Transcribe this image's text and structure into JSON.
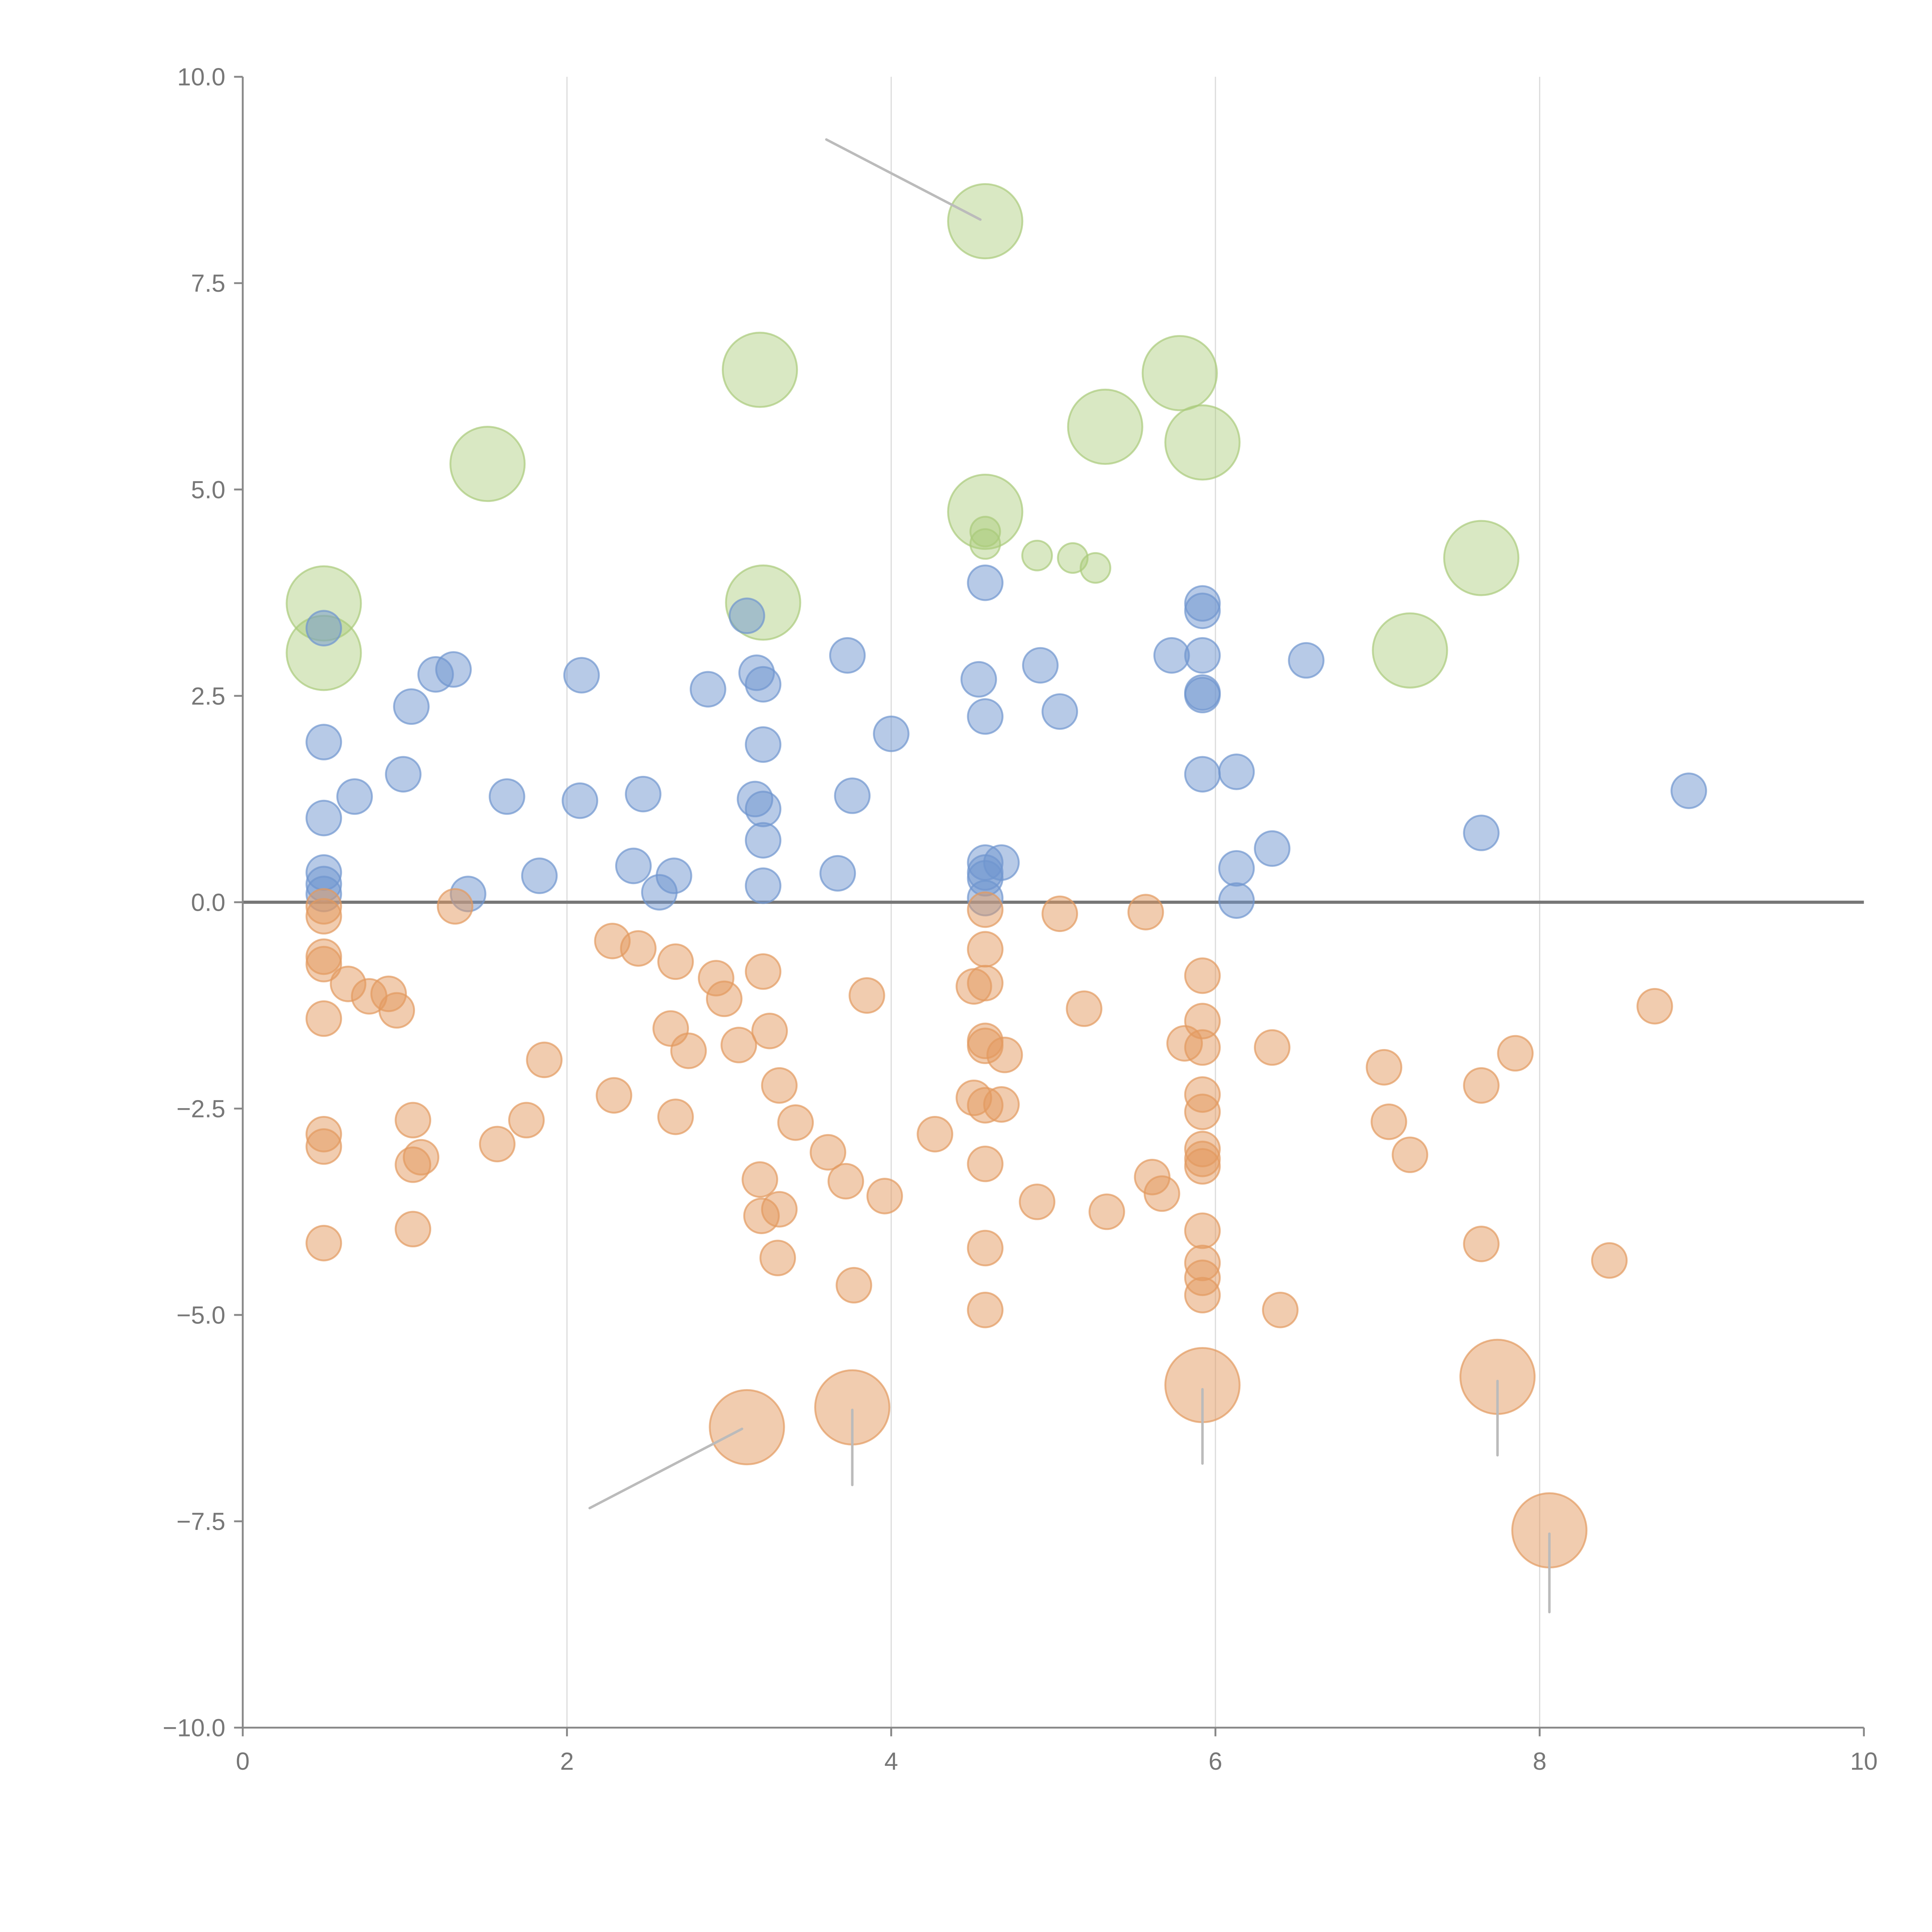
{
  "chart_data": {
    "type": "scatter",
    "title": "",
    "xlabel": "",
    "ylabel": "",
    "xlim": [
      0,
      10
    ],
    "ylim": [
      -10,
      10
    ],
    "grid": "vertical",
    "x_ticks": [
      "0",
      "2",
      "4",
      "6",
      "8",
      "10"
    ],
    "x_tick_values": [
      0,
      2,
      4,
      6,
      8,
      10
    ],
    "y_ticks": [
      "10.0",
      "7.5",
      "5.0",
      "2.5",
      "0.0",
      "−2.5",
      "−5.0",
      "−7.5",
      "−10.0"
    ],
    "y_tick_values": [
      10,
      7.5,
      5,
      2.5,
      0,
      -2.5,
      -5,
      -7.5,
      -10
    ],
    "colors": {
      "blue": "#6f95cf",
      "orange": "#e39a5f",
      "green": "#aacb7a",
      "leader": "#bbbbbb",
      "axis": "#888888",
      "zero_line": "#777777",
      "grid": "#dddddd"
    },
    "series": [
      {
        "name": "blue",
        "size": 1,
        "points": [
          [
            0.5,
            3.32
          ],
          [
            0.5,
            1.94
          ],
          [
            0.5,
            1.02
          ],
          [
            0.5,
            0.36
          ],
          [
            0.5,
            0.22
          ],
          [
            0.5,
            0.1
          ],
          [
            0.69,
            1.28
          ],
          [
            0.99,
            1.55
          ],
          [
            1.04,
            2.37
          ],
          [
            1.19,
            2.76
          ],
          [
            1.3,
            2.82
          ],
          [
            1.39,
            0.1
          ],
          [
            1.63,
            1.28
          ],
          [
            1.83,
            0.32
          ],
          [
            2.08,
            1.23
          ],
          [
            2.09,
            2.75
          ],
          [
            2.41,
            0.44
          ],
          [
            2.47,
            1.31
          ],
          [
            2.57,
            0.12
          ],
          [
            2.66,
            0.32
          ],
          [
            2.87,
            2.58
          ],
          [
            3.11,
            3.47
          ],
          [
            3.17,
            2.78
          ],
          [
            3.21,
            2.64
          ],
          [
            3.21,
            1.91
          ],
          [
            3.16,
            1.25
          ],
          [
            3.21,
            1.13
          ],
          [
            3.21,
            0.75
          ],
          [
            3.21,
            0.2
          ],
          [
            3.67,
            0.35
          ],
          [
            3.73,
            2.99
          ],
          [
            3.76,
            1.29
          ],
          [
            4.0,
            2.04
          ],
          [
            4.54,
            2.7
          ],
          [
            4.58,
            3.87
          ],
          [
            4.58,
            2.25
          ],
          [
            4.58,
            0.48
          ],
          [
            4.58,
            0.36
          ],
          [
            4.58,
            0.29
          ],
          [
            4.58,
            0.05
          ],
          [
            4.68,
            0.48
          ],
          [
            4.92,
            2.87
          ],
          [
            5.04,
            2.31
          ],
          [
            5.73,
            2.99
          ],
          [
            5.92,
            3.62
          ],
          [
            5.92,
            3.53
          ],
          [
            5.92,
            2.99
          ],
          [
            5.92,
            2.54
          ],
          [
            5.92,
            2.51
          ],
          [
            5.92,
            1.55
          ],
          [
            6.13,
            1.58
          ],
          [
            6.13,
            0.41
          ],
          [
            6.13,
            0.02
          ],
          [
            6.35,
            0.65
          ],
          [
            6.56,
            2.93
          ],
          [
            7.64,
            0.84
          ],
          [
            8.92,
            1.35
          ]
        ]
      },
      {
        "name": "green",
        "points": [
          [
            0.5,
            3.62,
            3
          ],
          [
            0.5,
            3.02,
            3
          ],
          [
            1.51,
            5.31,
            3
          ],
          [
            3.19,
            6.45,
            3
          ],
          [
            3.21,
            3.63,
            3
          ],
          [
            4.58,
            8.25,
            3
          ],
          [
            4.58,
            4.73,
            3
          ],
          [
            5.32,
            5.76,
            3
          ],
          [
            5.78,
            6.41,
            3
          ],
          [
            5.92,
            5.57,
            3
          ],
          [
            7.2,
            3.05,
            3
          ],
          [
            7.64,
            4.17,
            3
          ],
          [
            4.58,
            4.49,
            1
          ],
          [
            4.58,
            4.34,
            1
          ],
          [
            4.9,
            4.2,
            1
          ],
          [
            5.12,
            4.17,
            1
          ],
          [
            5.26,
            4.05,
            1
          ]
        ]
      },
      {
        "name": "orange",
        "points": [
          [
            0.5,
            -0.05,
            1
          ],
          [
            0.5,
            -0.17,
            1
          ],
          [
            0.5,
            -0.66,
            1
          ],
          [
            0.5,
            -0.75,
            1
          ],
          [
            0.5,
            -1.41,
            1
          ],
          [
            0.5,
            -2.81,
            1
          ],
          [
            0.5,
            -2.96,
            1
          ],
          [
            0.5,
            -4.13,
            1
          ],
          [
            0.65,
            -0.99,
            1
          ],
          [
            0.78,
            -1.14,
            1
          ],
          [
            0.9,
            -1.11,
            1
          ],
          [
            0.95,
            -1.31,
            1
          ],
          [
            1.05,
            -2.64,
            1
          ],
          [
            1.05,
            -3.18,
            1
          ],
          [
            1.1,
            -3.09,
            1
          ],
          [
            1.05,
            -3.96,
            1
          ],
          [
            1.31,
            -0.05,
            1
          ],
          [
            1.57,
            -2.93,
            1
          ],
          [
            1.75,
            -2.64,
            1
          ],
          [
            1.86,
            -1.91,
            1
          ],
          [
            2.28,
            -0.47,
            1
          ],
          [
            2.29,
            -2.34,
            1
          ],
          [
            2.44,
            -0.56,
            1
          ],
          [
            2.67,
            -0.72,
            1
          ],
          [
            2.64,
            -1.53,
            1
          ],
          [
            2.75,
            -1.8,
            1
          ],
          [
            2.67,
            -2.6,
            1
          ],
          [
            2.92,
            -0.92,
            1
          ],
          [
            2.97,
            -1.17,
            1
          ],
          [
            3.06,
            -1.73,
            1
          ],
          [
            3.19,
            -3.36,
            1
          ],
          [
            3.2,
            -3.8,
            1
          ],
          [
            3.31,
            -3.72,
            1
          ],
          [
            3.21,
            -0.84,
            1
          ],
          [
            3.25,
            -1.56,
            1
          ],
          [
            3.31,
            -2.22,
            1
          ],
          [
            3.3,
            -4.31,
            1
          ],
          [
            3.41,
            -2.67,
            1
          ],
          [
            3.61,
            -3.03,
            1
          ],
          [
            3.72,
            -3.38,
            1
          ],
          [
            3.77,
            -4.64,
            1
          ],
          [
            3.85,
            -1.13,
            1
          ],
          [
            3.96,
            -3.56,
            1
          ],
          [
            4.27,
            -2.81,
            1
          ],
          [
            4.51,
            -1.02,
            1
          ],
          [
            4.58,
            -0.09,
            1
          ],
          [
            4.58,
            -0.57,
            1
          ],
          [
            4.58,
            -0.98,
            1
          ],
          [
            4.58,
            -1.68,
            1
          ],
          [
            4.58,
            -1.74,
            1
          ],
          [
            4.51,
            -2.37,
            1
          ],
          [
            4.58,
            -2.46,
            1
          ],
          [
            4.68,
            -2.45,
            1
          ],
          [
            4.7,
            -1.85,
            1
          ],
          [
            4.58,
            -3.17,
            1
          ],
          [
            4.58,
            -4.19,
            1
          ],
          [
            4.58,
            -4.94,
            1
          ],
          [
            4.9,
            -3.63,
            1
          ],
          [
            5.04,
            -0.14,
            1
          ],
          [
            5.19,
            -1.29,
            1
          ],
          [
            5.33,
            -3.75,
            1
          ],
          [
            5.57,
            -0.12,
            1
          ],
          [
            5.61,
            -3.33,
            1
          ],
          [
            5.67,
            -3.53,
            1
          ],
          [
            5.81,
            -1.71,
            1
          ],
          [
            5.92,
            -0.89,
            1
          ],
          [
            5.92,
            -1.44,
            1
          ],
          [
            5.92,
            -1.76,
            1
          ],
          [
            5.92,
            -2.33,
            1
          ],
          [
            5.92,
            -2.54,
            1
          ],
          [
            5.92,
            -2.99,
            1
          ],
          [
            5.92,
            -3.11,
            1
          ],
          [
            5.92,
            -3.2,
            1
          ],
          [
            5.92,
            -3.98,
            1
          ],
          [
            5.92,
            -4.37,
            1
          ],
          [
            5.92,
            -4.55,
            1
          ],
          [
            5.92,
            -4.76,
            1
          ],
          [
            6.35,
            -1.76,
            1
          ],
          [
            6.4,
            -4.94,
            1
          ],
          [
            7.04,
            -2.0,
            1
          ],
          [
            7.07,
            -2.66,
            1
          ],
          [
            7.2,
            -3.06,
            1
          ],
          [
            7.64,
            -2.22,
            1
          ],
          [
            7.64,
            -4.14,
            1
          ],
          [
            7.85,
            -1.83,
            1
          ],
          [
            8.43,
            -4.34,
            1
          ],
          [
            8.71,
            -1.26,
            1
          ],
          [
            3.11,
            -6.36,
            3
          ],
          [
            3.76,
            -6.12,
            3
          ],
          [
            5.92,
            -5.85,
            3
          ],
          [
            7.74,
            -5.75,
            3
          ],
          [
            8.06,
            -7.61,
            3
          ]
        ]
      }
    ],
    "annotations": [
      {
        "from": [
          4.55,
          8.27
        ],
        "to": [
          3.6,
          9.24
        ]
      },
      {
        "from": [
          3.08,
          -6.38
        ],
        "to": [
          2.14,
          -7.34
        ]
      },
      {
        "from": [
          3.76,
          -6.15
        ],
        "to": [
          3.76,
          -7.06
        ]
      },
      {
        "from": [
          5.92,
          -5.9
        ],
        "to": [
          5.92,
          -6.8
        ]
      },
      {
        "from": [
          7.74,
          -5.8
        ],
        "to": [
          7.74,
          -6.7
        ]
      },
      {
        "from": [
          8.06,
          -7.65
        ],
        "to": [
          8.06,
          -8.6
        ]
      }
    ]
  }
}
